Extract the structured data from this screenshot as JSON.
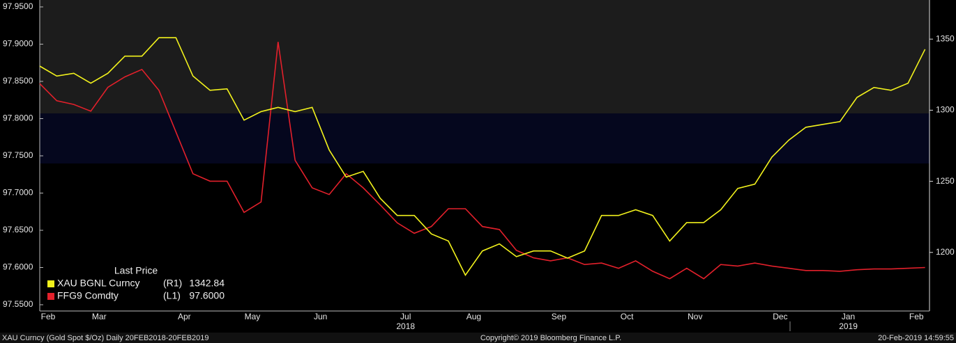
{
  "chart_data": {
    "type": "line",
    "categories": [
      "Feb",
      null,
      null,
      "Mar",
      null,
      null,
      null,
      null,
      "Apr",
      null,
      null,
      null,
      "May",
      null,
      null,
      null,
      "Jun",
      null,
      null,
      null,
      null,
      "Jul",
      null,
      null,
      null,
      "Aug",
      null,
      null,
      null,
      null,
      "Sep",
      null,
      null,
      null,
      "Oct",
      null,
      null,
      null,
      "Nov",
      null,
      null,
      null,
      null,
      "Dec",
      null,
      null,
      null,
      "Jan",
      null,
      null,
      null,
      "Feb",
      null
    ],
    "year_labels": [
      "2018",
      "2019"
    ],
    "legend_title": "Last Price",
    "series": [
      {
        "name": "XAU BGNL Curncy",
        "axis_label": "(R1)",
        "last_value_label": "1342.84",
        "color": "#f2f21c",
        "axis": "y2",
        "values": [
          1331,
          1324,
          1326,
          1319,
          1326,
          1338,
          1338,
          1351,
          1351,
          1324,
          1314,
          1315,
          1293,
          1299,
          1302,
          1299,
          1302,
          1272,
          1253,
          1257,
          1238,
          1226,
          1226,
          1213,
          1208,
          1184,
          1201,
          1206,
          1197,
          1201,
          1201,
          1196,
          1201,
          1226,
          1226,
          1230,
          1226,
          1208,
          1221,
          1221,
          1230,
          1245,
          1248,
          1267,
          1279,
          1288,
          1290,
          1292,
          1309,
          1316,
          1314,
          1319,
          1342.84
        ]
      },
      {
        "name": "FFG9 Comdty",
        "axis_label": "(L1)",
        "last_value_label": "97.6000",
        "color": "#e3202b",
        "values": [
          97.847,
          97.824,
          97.819,
          97.81,
          97.842,
          97.856,
          97.866,
          97.838,
          97.782,
          97.726,
          97.716,
          97.716,
          97.674,
          97.688,
          97.903,
          97.744,
          97.707,
          97.698,
          97.726,
          97.707,
          97.684,
          97.66,
          97.646,
          97.655,
          97.679,
          97.679,
          97.655,
          97.651,
          97.623,
          97.613,
          97.609,
          97.613,
          97.604,
          97.606,
          97.599,
          97.609,
          97.595,
          97.585,
          97.599,
          97.585,
          97.604,
          97.602,
          97.606,
          97.602,
          97.599,
          97.596,
          97.596,
          97.595,
          97.597,
          97.598,
          97.598,
          97.599,
          97.6
        ]
      }
    ],
    "ylim": [
      97.5416,
      97.9593
    ],
    "yticks": [
      {
        "value": 97.55,
        "label": "97.5500"
      },
      {
        "value": 97.6,
        "label": "97.6000"
      },
      {
        "value": 97.65,
        "label": "97.6500"
      },
      {
        "value": 97.7,
        "label": "97.7000"
      },
      {
        "value": 97.75,
        "label": "97.7500"
      },
      {
        "value": 97.8,
        "label": "97.8000"
      },
      {
        "value": 97.85,
        "label": "97.8500"
      },
      {
        "value": 97.9,
        "label": "97.9000"
      },
      {
        "value": 97.95,
        "label": "97.9500"
      }
    ],
    "y2lim": [
      1158.8,
      1377.5
    ],
    "y2ticks": [
      1200,
      1250,
      1300,
      1350
    ],
    "footer_left": "XAU Curncy (Gold Spot  $/Oz)  Daily 20FEB2018-20FEB2019",
    "footer_center": "Copyright© 2019 Bloomberg Finance L.P.",
    "footer_right": "20-Feb-2019 14:59:55"
  }
}
